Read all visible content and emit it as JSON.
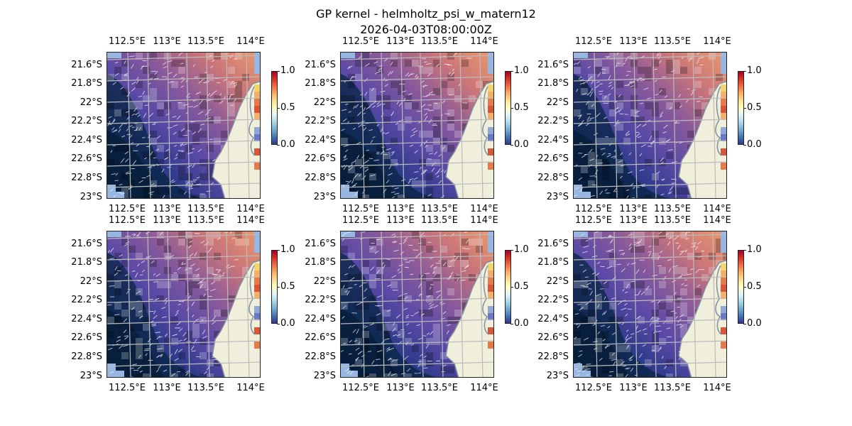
{
  "figure": {
    "title_line1": "GP kernel - helmholtz_psi_w_matern12",
    "title_line2": "2026-04-03T08:00:00Z"
  },
  "lon_ticks": [
    "112.5°E",
    "113°E",
    "113.5°E",
    "114°E"
  ],
  "lat_ticks": [
    "21.6°S",
    "21.8°S",
    "22°S",
    "22.2°S",
    "22.4°S",
    "22.6°S",
    "22.8°S",
    "23°S"
  ],
  "colorbar": {
    "ticks": [
      "0.0",
      "0.5",
      "1.0"
    ],
    "colormap": "RdYlBu_r",
    "range": [
      0.0,
      1.0
    ]
  },
  "colors": {
    "land": "#efefdb",
    "ocean_nodata": "#97b6e1",
    "coast": "#808f9e",
    "grid": "#bbbbbb",
    "vectors": "#ffffff"
  },
  "panels": [
    {
      "id": 1
    },
    {
      "id": 2
    },
    {
      "id": 3
    },
    {
      "id": 4
    },
    {
      "id": 5
    },
    {
      "id": 6
    }
  ]
}
